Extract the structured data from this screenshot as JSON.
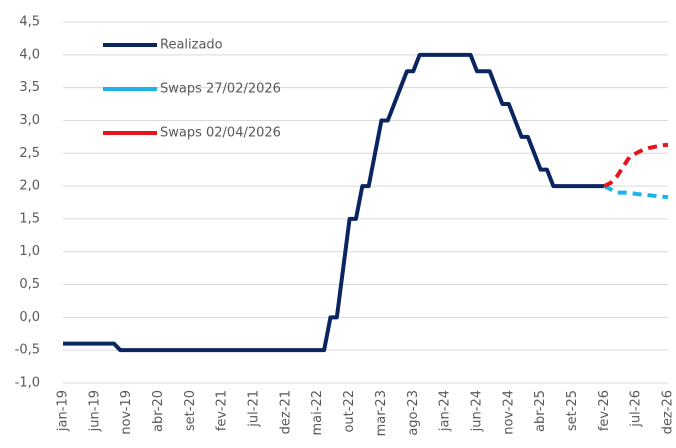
{
  "chart_data": {
    "type": "line",
    "categories": [
      "jan-19",
      null,
      null,
      null,
      null,
      "jun-19",
      null,
      null,
      null,
      null,
      "nov-19",
      null,
      null,
      null,
      null,
      "abr-20",
      null,
      null,
      null,
      null,
      "set-20",
      null,
      null,
      null,
      null,
      "fev-21",
      null,
      null,
      null,
      null,
      "jul-21",
      null,
      null,
      null,
      null,
      "dez-21",
      null,
      null,
      null,
      null,
      "mai-22",
      null,
      null,
      null,
      null,
      "out-22",
      null,
      null,
      null,
      null,
      "mar-23",
      null,
      null,
      null,
      null,
      "ago-23",
      null,
      null,
      null,
      null,
      "jan-24",
      null,
      null,
      null,
      null,
      "jun-24",
      null,
      null,
      null,
      null,
      "nov-24",
      null,
      null,
      null,
      null,
      "abr-25",
      null,
      null,
      null,
      null,
      "set-25",
      null,
      null,
      null,
      null,
      "fev-26",
      null,
      null,
      null,
      null,
      "jul-26",
      null,
      null,
      null,
      null,
      "dez-26"
    ],
    "series": [
      {
        "name": "Realizado",
        "color": "#0b2561",
        "dashed": false,
        "values": [
          -0.4,
          -0.4,
          -0.4,
          -0.4,
          -0.4,
          -0.4,
          -0.4,
          -0.4,
          -0.4,
          -0.5,
          -0.5,
          -0.5,
          -0.5,
          -0.5,
          -0.5,
          -0.5,
          -0.5,
          -0.5,
          -0.5,
          -0.5,
          -0.5,
          -0.5,
          -0.5,
          -0.5,
          -0.5,
          -0.5,
          -0.5,
          -0.5,
          -0.5,
          -0.5,
          -0.5,
          -0.5,
          -0.5,
          -0.5,
          -0.5,
          -0.5,
          -0.5,
          -0.5,
          -0.5,
          -0.5,
          -0.5,
          -0.5,
          0,
          0,
          0.75,
          1.5,
          1.5,
          2.0,
          2.0,
          2.5,
          3.0,
          3.0,
          3.25,
          3.5,
          3.75,
          3.75,
          4.0,
          4.0,
          4.0,
          4.0,
          4.0,
          4.0,
          4.0,
          4.0,
          4.0,
          3.75,
          3.75,
          3.75,
          3.5,
          3.25,
          3.25,
          3.0,
          2.75,
          2.75,
          2.5,
          2.25,
          2.25,
          2.0,
          2.0,
          2.0,
          2.0,
          2.0,
          2.0,
          2.0,
          2.0,
          2.0,
          null,
          null,
          null,
          null,
          null,
          null,
          null,
          null,
          null,
          null
        ]
      },
      {
        "name": "Swaps 27/02/2026",
        "color": "#1cb4e8",
        "dashed": true,
        "values": [
          null,
          null,
          null,
          null,
          null,
          null,
          null,
          null,
          null,
          null,
          null,
          null,
          null,
          null,
          null,
          null,
          null,
          null,
          null,
          null,
          null,
          null,
          null,
          null,
          null,
          null,
          null,
          null,
          null,
          null,
          null,
          null,
          null,
          null,
          null,
          null,
          null,
          null,
          null,
          null,
          null,
          null,
          null,
          null,
          null,
          null,
          null,
          null,
          null,
          null,
          null,
          null,
          null,
          null,
          null,
          null,
          null,
          null,
          null,
          null,
          null,
          null,
          null,
          null,
          null,
          null,
          null,
          null,
          null,
          null,
          null,
          null,
          null,
          null,
          null,
          null,
          null,
          null,
          null,
          null,
          null,
          null,
          null,
          null,
          null,
          2.0,
          1.95,
          1.9,
          1.9,
          1.9,
          1.88,
          1.87,
          1.86,
          1.85,
          1.84,
          1.83
        ]
      },
      {
        "name": "Swaps 02/04/2026",
        "color": "#e8141c",
        "dashed": true,
        "values": [
          null,
          null,
          null,
          null,
          null,
          null,
          null,
          null,
          null,
          null,
          null,
          null,
          null,
          null,
          null,
          null,
          null,
          null,
          null,
          null,
          null,
          null,
          null,
          null,
          null,
          null,
          null,
          null,
          null,
          null,
          null,
          null,
          null,
          null,
          null,
          null,
          null,
          null,
          null,
          null,
          null,
          null,
          null,
          null,
          null,
          null,
          null,
          null,
          null,
          null,
          null,
          null,
          null,
          null,
          null,
          null,
          null,
          null,
          null,
          null,
          null,
          null,
          null,
          null,
          null,
          null,
          null,
          null,
          null,
          null,
          null,
          null,
          null,
          null,
          null,
          null,
          null,
          null,
          null,
          null,
          null,
          null,
          null,
          null,
          null,
          2.0,
          2.05,
          2.15,
          2.3,
          2.45,
          2.5,
          2.55,
          2.58,
          2.6,
          2.62,
          2.63
        ]
      }
    ],
    "ylim": [
      -1.0,
      4.5
    ],
    "yticks": [
      {
        "value": -1.0,
        "label": "-1,0"
      },
      {
        "value": -0.5,
        "label": "-0,5"
      },
      {
        "value": 0.0,
        "label": "0,0"
      },
      {
        "value": 0.5,
        "label": "0,5"
      },
      {
        "value": 1.0,
        "label": "1,0"
      },
      {
        "value": 1.5,
        "label": "1,5"
      },
      {
        "value": 2.0,
        "label": "2,0"
      },
      {
        "value": 2.5,
        "label": "2,5"
      },
      {
        "value": 3.0,
        "label": "3,0"
      },
      {
        "value": 3.5,
        "label": "3,5"
      },
      {
        "value": 4.0,
        "label": "4,0"
      },
      {
        "value": 4.5,
        "label": "4,5"
      }
    ],
    "grid": true,
    "legend": "upper-left"
  }
}
